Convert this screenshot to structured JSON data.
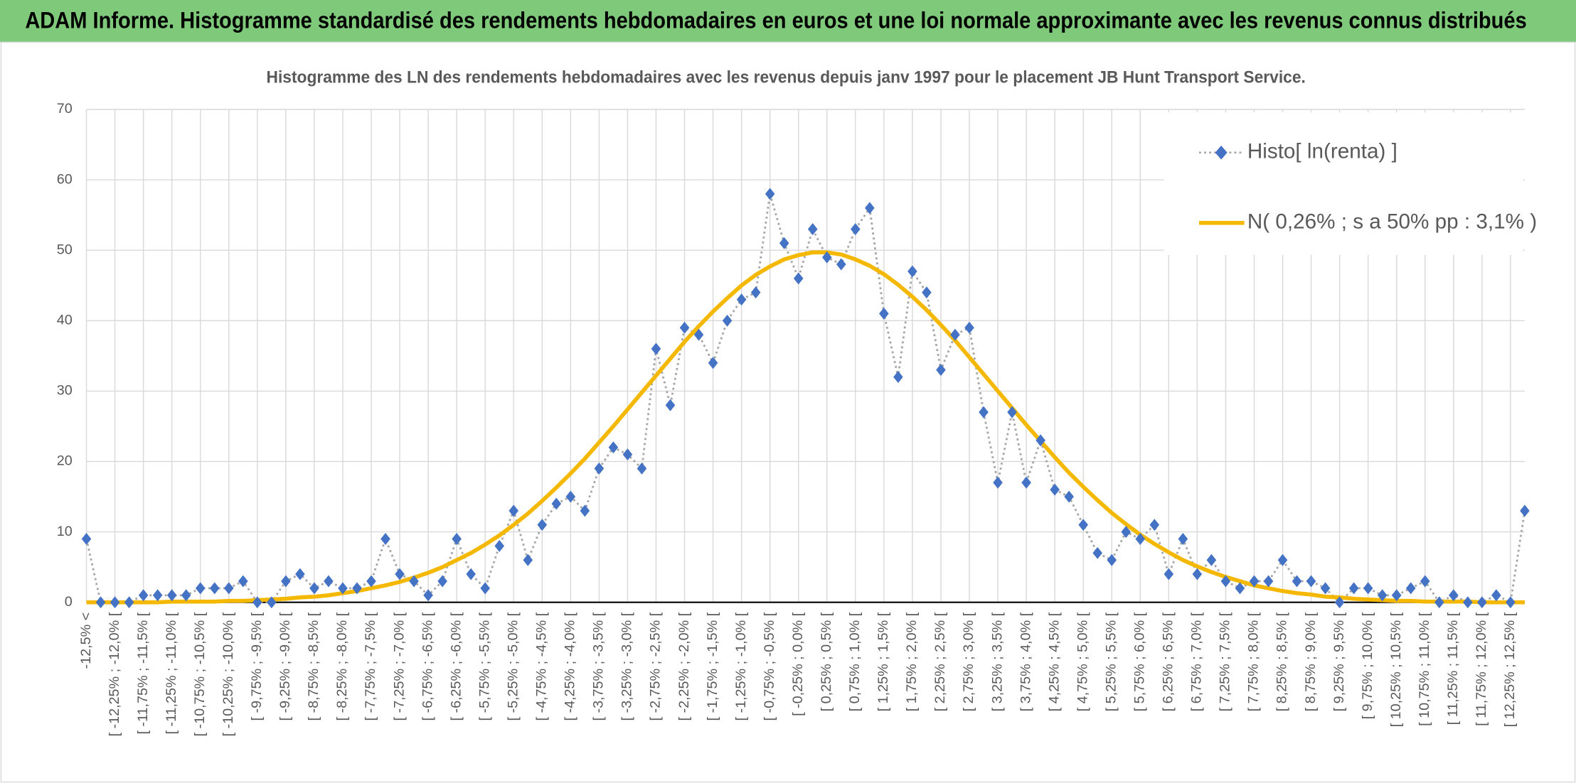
{
  "chart_data": {
    "type": "line",
    "header": "ADAM Informe. Histogramme standardisé des rendements hebdomadaires en euros et une loi normale approximante avec les revenus connus distribués",
    "title": "Histogramme des LN des rendements hebdomadaires avec les revenus depuis janv 1997 pour le placement JB Hunt Transport Service.",
    "categories": [
      "-12,5% <",
      null,
      "[ -12,25% ; -12,0% [",
      null,
      "[ -11,75% ; -11,5% [",
      null,
      "[ -11,25% ; -11,0% [",
      null,
      "[ -10,75% ; -10,5% [",
      null,
      "[ -10,25% ; -10,0% [",
      null,
      "[ -9,75% ; -9,5% [",
      null,
      "[ -9,25% ; -9,0% [",
      null,
      "[ -8,75% ; -8,5% [",
      null,
      "[ -8,25% ; -8,0% [",
      null,
      "[ -7,75% ; -7,5% [",
      null,
      "[ -7,25% ; -7,0% [",
      null,
      "[ -6,75% ; -6,5% [",
      null,
      "[ -6,25% ; -6,0% [",
      null,
      "[ -5,75% ; -5,5% [",
      null,
      "[ -5,25% ; -5,0% [",
      null,
      "[ -4,75% ; -4,5% [",
      null,
      "[ -4,25% ; -4,0% [",
      null,
      "[ -3,75% ; -3,5% [",
      null,
      "[ -3,25% ; -3,0% [",
      null,
      "[ -2,75% ; -2,5% [",
      null,
      "[ -2,25% ; -2,0% [",
      null,
      "[ -1,75% ; -1,5% [",
      null,
      "[ -1,25% ; -1,0% [",
      null,
      "[ -0,75% ; -0,5% [",
      null,
      "[ -0,25% ; 0,0% [",
      null,
      "[ 0,25% ; 0,5% [",
      null,
      "[ 0,75% ; 1,0% [",
      null,
      "[ 1,25% ; 1,5% [",
      null,
      "[ 1,75% ; 2,0% [",
      null,
      "[ 2,25% ; 2,5% [",
      null,
      "[ 2,75% ; 3,0% [",
      null,
      "[ 3,25% ; 3,5% [",
      null,
      "[ 3,75% ; 4,0% [",
      null,
      "[ 4,25% ; 4,5% [",
      null,
      "[ 4,75% ; 5,0% [",
      null,
      "[ 5,25% ; 5,5% [",
      null,
      "[ 5,75% ; 6,0% [",
      null,
      "[ 6,25% ; 6,5% [",
      null,
      "[ 6,75% ; 7,0% [",
      null,
      "[ 7,25% ; 7,5% [",
      null,
      "[ 7,75% ; 8,0% [",
      null,
      "[ 8,25% ; 8,5% [",
      null,
      "[ 8,75% ; 9,0% [",
      null,
      "[ 9,25% ; 9,5% [",
      null,
      "[ 9,75% ; 10,0% [",
      null,
      "[ 10,25% ; 10,5% [",
      null,
      "[ 10,75% ; 11,0% [",
      null,
      "[ 11,25% ; 11,5% [",
      null,
      "[ 11,75% ; 12,0% [",
      null,
      "[ 12,25% ; 12,5% [",
      null
    ],
    "series": [
      {
        "name": "Histo[ ln(renta) ]",
        "color": "#4472c4",
        "line_color": "#a6a6a6",
        "values": [
          9,
          0,
          0,
          0,
          1,
          1,
          1,
          1,
          2,
          2,
          2,
          3,
          0,
          0,
          3,
          4,
          2,
          3,
          2,
          2,
          3,
          9,
          4,
          3,
          1,
          3,
          9,
          4,
          2,
          8,
          13,
          6,
          11,
          14,
          15,
          13,
          19,
          22,
          21,
          19,
          36,
          28,
          39,
          38,
          34,
          40,
          43,
          44,
          58,
          51,
          46,
          53,
          49,
          48,
          53,
          56,
          41,
          32,
          47,
          44,
          33,
          38,
          39,
          27,
          17,
          27,
          17,
          23,
          16,
          15,
          11,
          7,
          6,
          10,
          9,
          11,
          4,
          9,
          4,
          6,
          3,
          2,
          3,
          3,
          6,
          3,
          3,
          2,
          0,
          2,
          2,
          1,
          1,
          2,
          3,
          0,
          1,
          0,
          0,
          1,
          0,
          13
        ]
      },
      {
        "name": "N( 0,26% ; s a 50% pp : 3,1% )",
        "color": "#f5b800",
        "values": [
          0,
          0,
          0,
          0,
          0,
          0,
          0.1,
          0.1,
          0.1,
          0.1,
          0.2,
          0.2,
          0.3,
          0.4,
          0.5,
          0.7,
          0.8,
          1.0,
          1.3,
          1.6,
          2.0,
          2.4,
          2.9,
          3.5,
          4.2,
          5.0,
          6.0,
          7.0,
          8.2,
          9.5,
          11.0,
          12.6,
          14.4,
          16.3,
          18.3,
          20.4,
          22.7,
          25.0,
          27.4,
          29.8,
          32.2,
          34.6,
          37.0,
          39.2,
          41.3,
          43.2,
          45.0,
          46.5,
          47.7,
          48.7,
          49.3,
          49.7,
          49.7,
          49.4,
          48.7,
          47.8,
          46.6,
          45.1,
          43.4,
          41.5,
          39.4,
          37.2,
          34.8,
          32.4,
          30.0,
          27.6,
          25.2,
          22.9,
          20.6,
          18.4,
          16.4,
          14.5,
          12.7,
          11.1,
          9.6,
          8.3,
          7.1,
          6.0,
          5.1,
          4.3,
          3.6,
          3.0,
          2.4,
          2.0,
          1.6,
          1.3,
          1.1,
          0.8,
          0.7,
          0.5,
          0.4,
          0.3,
          0.2,
          0.2,
          0.1,
          0.1,
          0.1,
          0.1,
          0,
          0,
          0,
          0
        ]
      }
    ],
    "ylim": [
      0,
      70
    ],
    "yticks": [
      0,
      10,
      20,
      30,
      40,
      50,
      60,
      70
    ],
    "grid": true,
    "legend": "upper right"
  }
}
